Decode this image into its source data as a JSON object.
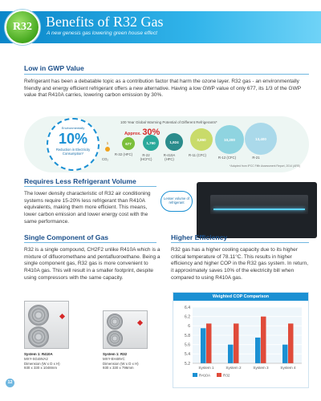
{
  "header": {
    "badge": "R32",
    "title": "Benefits of R32 Gas",
    "subtitle": "A new genesis gas lowering green house effect"
  },
  "low_gwp": {
    "heading": "Low in GWP Value",
    "body": "Refrigerant has been a debatable topic as a contribution factor that harm the ozone layer. R32 gas - an environmentally friendly and energy efficient refrigerant offers a new alternative. Having a low GWP value of only 677, its 1/3 of the GWP value that R410A carries, lowering carbon emission by 30%.",
    "infographic": {
      "title": "100 Year Global Warming Potential of Different Refrigerants*",
      "approx_prefix": "Approx.",
      "approx_value": "30%",
      "circle_top": "Environmentally",
      "circle_pct": "10%",
      "circle_bottom": "Reduction in Electricity Consumption*",
      "note": "*Adopted from IPCC Fifth Assessment Report, 2014 (AR5)",
      "bubbles": [
        {
          "value": "1",
          "label": "CO₂",
          "color": "#f0a21c"
        },
        {
          "value": "677",
          "label": "R-32 (HFC)",
          "color": "#7bbf3a"
        },
        {
          "value": "1,760",
          "label": "R-22 (HCFC)",
          "color": "#2aa99b"
        },
        {
          "value": "1,924",
          "label": "R-410A (HFC)",
          "color": "#2b8c8c"
        },
        {
          "value": "3,860",
          "label": "R-11 (CFC)",
          "color": "#c9db6a"
        },
        {
          "value": "10,200",
          "label": "R-12 (CFC)",
          "color": "#8fd4e0"
        },
        {
          "value": "13,400",
          "label": "R-21",
          "color": "#aad9ea"
        }
      ]
    }
  },
  "volume": {
    "heading": "Requires Less Refrigerant Volume",
    "body": "The lower density characteristic of R32 air conditioning systems require 15-20% less refrigerant than R410A equivalents, making them more efficient. This means, lower carbon emission and lower energy cost with the same performance.",
    "bubble": "Lesser volume of refrigerant"
  },
  "single": {
    "heading": "Single Component of Gas",
    "body": "R32 is a single compound, CH2F2 unlike R410A which is a mixture of difluoromethane and pentafluoroethane. Being a single component gas, R32 gas is more convenient to R410A gas. This will result in a smaller footprint, despite using compressors with the same capacity.",
    "units": [
      {
        "name": "System 1: R410A",
        "model": "MXY-SG48VA2",
        "dim_label": "Dimension (W x D x H)",
        "dim": "930 x 330 x 1048mm"
      },
      {
        "name": "System 1: R32",
        "model": "MXY-EH48VC",
        "dim_label": "Dimension (W x D x H)",
        "dim": "930 x 330 x 796mm"
      }
    ]
  },
  "efficiency": {
    "heading": "Higher Efficiency",
    "body": "R32 gas has a higher cooling capacity due to its higher critical temperature of 78.11°C. This results in higher efficiency and higher COP in the R32 gas system. In return, it approximately saves 10% of the electricity bill when compared to using R410A gas."
  },
  "chart_data": {
    "type": "bar",
    "title": "Weighted COP Comparison",
    "categories": [
      "System 1",
      "System 2",
      "System 3",
      "System 4"
    ],
    "series": [
      {
        "name": "R410A",
        "values": [
          5.95,
          5.6,
          5.75,
          5.6
        ],
        "color": "#1b90d3"
      },
      {
        "name": "R32",
        "values": [
          6.05,
          6.05,
          6.2,
          6.05
        ],
        "color": "#e04b3a"
      }
    ],
    "ylim": [
      5.2,
      6.4
    ],
    "yticks": [
      "5.2",
      "5.4",
      "5.6",
      "5.8",
      "6",
      "6.2",
      "6.4"
    ],
    "grid": true,
    "legend": "bottom"
  },
  "page_number": "12"
}
